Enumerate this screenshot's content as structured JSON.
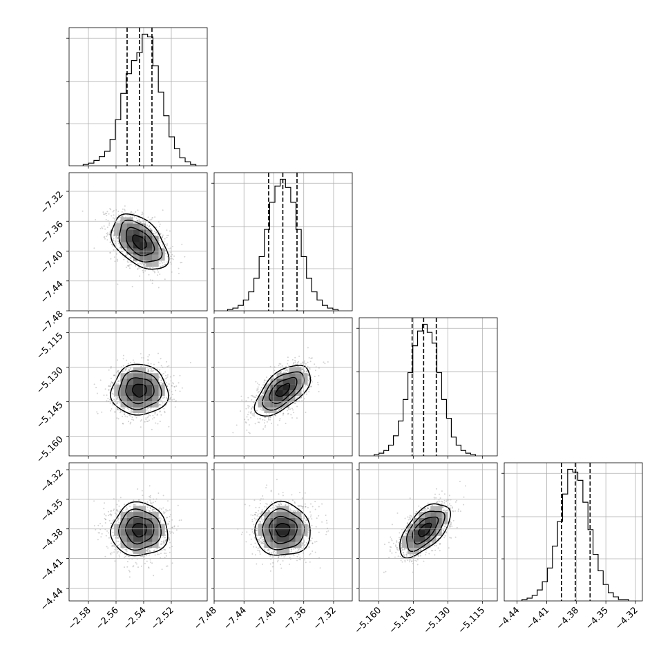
{
  "chart_data": {
    "type": "corner",
    "title": "",
    "grid": true,
    "parameters": [
      {
        "index": 0,
        "mean": -2.543,
        "sd": 0.0102,
        "quantiles": [
          -2.552,
          -2.543,
          -2.534
        ],
        "range": [
          -2.594,
          -2.494
        ],
        "ticks": [
          "−2.58",
          "−2.56",
          "−2.54",
          "−2.52"
        ],
        "tick_values": [
          -2.58,
          -2.56,
          -2.54,
          -2.52
        ]
      },
      {
        "index": 1,
        "mean": -7.388,
        "sd": 0.0185,
        "quantiles": [
          -7.407,
          -7.388,
          -7.369
        ],
        "range": [
          -7.48,
          -7.295
        ],
        "ticks": [
          "−7.48",
          "−7.44",
          "−7.40",
          "−7.36",
          "−7.32"
        ],
        "tick_values": [
          -7.48,
          -7.44,
          -7.4,
          -7.36,
          -7.32
        ]
      },
      {
        "index": 2,
        "mean": -5.14,
        "sd": 0.0055,
        "quantiles": [
          -5.1455,
          -5.1405,
          -5.135
        ],
        "range": [
          -5.1685,
          -5.1085
        ],
        "ticks": [
          "−5.160",
          "−5.145",
          "−5.130",
          "−5.115"
        ],
        "tick_values": [
          -5.16,
          -5.145,
          -5.13,
          -5.115
        ]
      },
      {
        "index": 3,
        "mean": -4.381,
        "sd": 0.0135,
        "quantiles": [
          -4.395,
          -4.381,
          -4.366
        ],
        "range": [
          -4.453,
          -4.313
        ],
        "ticks": [
          "−4.44",
          "−4.41",
          "−4.38",
          "−4.35",
          "−4.32"
        ],
        "tick_values": [
          -4.44,
          -4.41,
          -4.38,
          -4.35,
          -4.32
        ]
      }
    ],
    "histograms": [
      [
        1,
        2,
        4,
        7,
        11,
        20,
        35,
        55,
        70,
        80,
        86,
        100,
        98,
        76,
        56,
        38,
        22,
        13,
        6,
        3,
        1
      ],
      [
        1,
        2,
        4,
        8,
        14,
        24,
        40,
        60,
        80,
        92,
        97,
        91,
        80,
        60,
        40,
        24,
        14,
        8,
        4,
        2,
        1
      ],
      [
        1,
        2,
        4,
        8,
        15,
        26,
        42,
        62,
        82,
        93,
        98,
        92,
        84,
        62,
        42,
        28,
        14,
        8,
        4,
        2,
        1
      ],
      [
        1,
        2,
        4,
        8,
        14,
        24,
        40,
        58,
        78,
        96,
        94,
        88,
        72,
        52,
        34,
        22,
        12,
        6,
        3,
        1,
        1
      ]
    ],
    "correlations": {
      "1_0": -0.45,
      "2_0": 0.0,
      "2_1": 0.6,
      "3_0": 0.0,
      "3_1": 0.0,
      "3_2": 0.6
    }
  }
}
